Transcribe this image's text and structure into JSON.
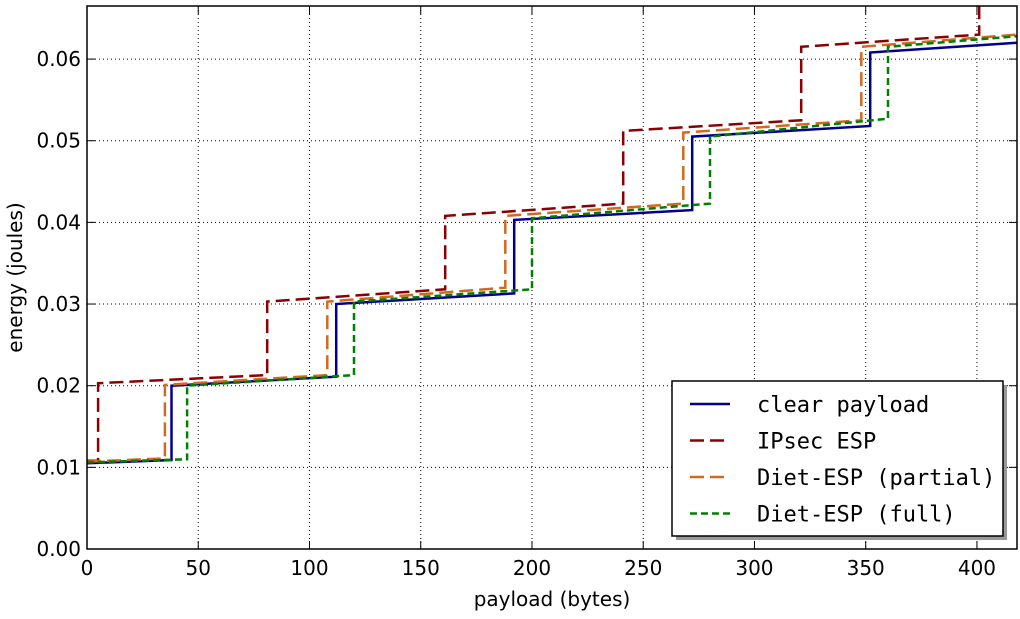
{
  "chart_data": {
    "type": "line",
    "xlabel": "payload (bytes)",
    "ylabel": "energy (joules)",
    "xlim": [
      0,
      418
    ],
    "ylim": [
      0,
      0.0665
    ],
    "xticks": [
      0,
      50,
      100,
      150,
      200,
      250,
      300,
      350,
      400
    ],
    "yticks": [
      0.0,
      0.01,
      0.02,
      0.03,
      0.04,
      0.05,
      0.06
    ],
    "ytick_labels": [
      "0.00",
      "0.01",
      "0.02",
      "0.03",
      "0.04",
      "0.05",
      "0.06"
    ],
    "grid": true,
    "legend_position": "lower-right",
    "series": [
      {
        "name": "clear payload",
        "color": "#00008b",
        "dash": "solid",
        "x": [
          0,
          38,
          38,
          112,
          112,
          192,
          192,
          272,
          272,
          352,
          352,
          418
        ],
        "y": [
          0.0105,
          0.0109,
          0.02,
          0.0211,
          0.03,
          0.0313,
          0.0403,
          0.0415,
          0.0505,
          0.0518,
          0.0608,
          0.062
        ]
      },
      {
        "name": "IPsec ESP",
        "color": "#8b0000",
        "dash": "long-dash",
        "x": [
          0,
          5,
          5,
          81,
          81,
          161,
          161,
          241,
          241,
          321,
          321,
          401,
          401
        ],
        "y": [
          0.0108,
          0.0108,
          0.0203,
          0.0213,
          0.0303,
          0.0318,
          0.0408,
          0.0423,
          0.0512,
          0.0525,
          0.0615,
          0.063,
          0.0665
        ]
      },
      {
        "name": "Diet-ESP (partial)",
        "color": "#d2691e",
        "dash": "long-dash",
        "x": [
          0,
          35,
          35,
          108,
          108,
          188,
          188,
          268,
          268,
          348,
          348,
          418
        ],
        "y": [
          0.0107,
          0.0111,
          0.0201,
          0.0213,
          0.0303,
          0.032,
          0.0408,
          0.0423,
          0.051,
          0.0525,
          0.0615,
          0.063
        ]
      },
      {
        "name": "Diet-ESP (full)",
        "color": "#008000",
        "dash": "short-dash",
        "x": [
          0,
          45,
          45,
          120,
          120,
          200,
          200,
          280,
          280,
          360,
          360,
          418
        ],
        "y": [
          0.0106,
          0.011,
          0.02,
          0.0213,
          0.0303,
          0.0318,
          0.0405,
          0.0423,
          0.0505,
          0.0527,
          0.0615,
          0.0628
        ]
      }
    ]
  }
}
